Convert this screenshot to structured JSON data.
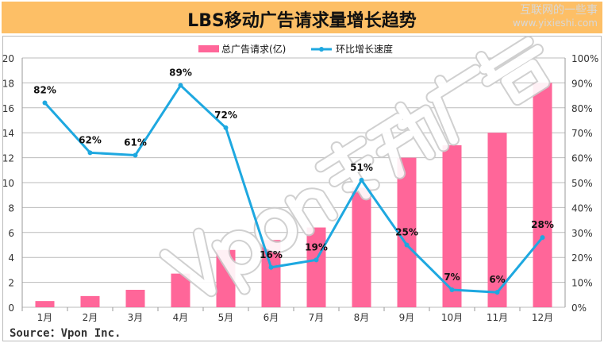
{
  "title": "LBS移动广告请求量增长趋势",
  "watermark": {
    "site_name": "互联网的一些事",
    "site_url": "www.yixieshi.com",
    "overlay": "Vpon移动广告"
  },
  "source": "Source：Vpon Inc.",
  "chart_data": {
    "type": "bar+line",
    "title": "LBS移动广告请求量增长趋势",
    "categories": [
      "1月",
      "2月",
      "3月",
      "4月",
      "5月",
      "6月",
      "7月",
      "8月",
      "9月",
      "10月",
      "11月",
      "12月"
    ],
    "series": [
      {
        "name": "总广告请求(亿)",
        "type": "bar",
        "axis": "left",
        "color": "#ff6699",
        "values": [
          0.5,
          0.9,
          1.4,
          2.7,
          4.6,
          5.4,
          6.4,
          9.6,
          12,
          13,
          14,
          18
        ]
      },
      {
        "name": "环比增长速度",
        "type": "line",
        "axis": "right",
        "color": "#1ea8e0",
        "values": [
          82,
          62,
          61,
          89,
          72,
          16,
          19,
          51,
          25,
          7,
          6,
          28
        ],
        "labels": [
          "82%",
          "62%",
          "61%",
          "89%",
          "72%",
          "16%",
          "19%",
          "51%",
          "25%",
          "7%",
          "6%",
          "28%"
        ]
      }
    ],
    "y_left": {
      "range": [
        0,
        20
      ],
      "ticks": [
        "0",
        "2",
        "4",
        "6",
        "8",
        "10",
        "12",
        "14",
        "16",
        "18",
        "20"
      ]
    },
    "y_right": {
      "range": [
        0,
        100
      ],
      "ticks": [
        "0%",
        "10%",
        "20%",
        "30%",
        "40%",
        "50%",
        "60%",
        "70%",
        "80%",
        "90%",
        "100%"
      ]
    },
    "grid": true,
    "legend": "top-center"
  }
}
